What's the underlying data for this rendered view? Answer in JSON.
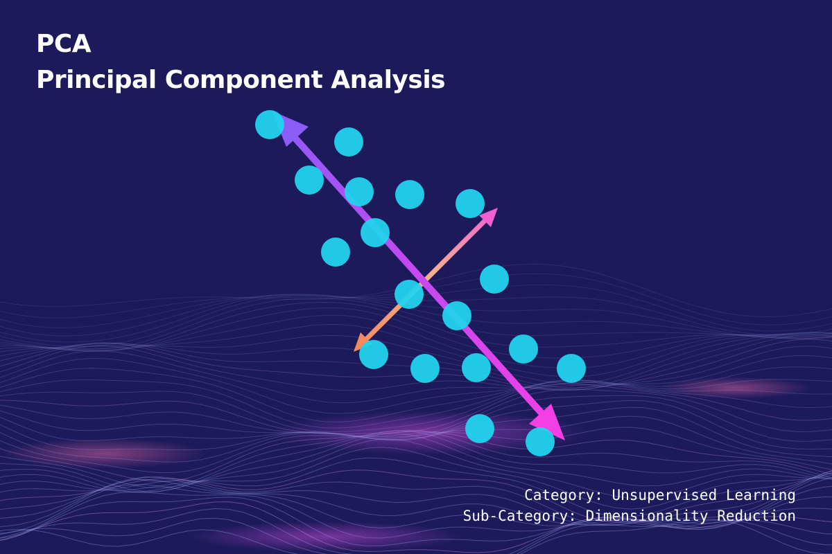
{
  "header": {
    "title": "PCA",
    "subtitle": "Principal Component Analysis"
  },
  "footer": {
    "category": "Category: Unsupervised Learning",
    "sub_category": "Sub-Category: Dimensionality Reduction"
  },
  "colors": {
    "background": "#1c1a5a",
    "point": "#22d3ee",
    "primary_arrow": "#e040fb",
    "secondary_arrow": "#f4a57a",
    "text": "#ffffff"
  },
  "icons": {
    "data_point": "data-point-icon",
    "principal_axis_1": "principal-component-1-arrow",
    "principal_axis_2": "principal-component-2-arrow"
  }
}
